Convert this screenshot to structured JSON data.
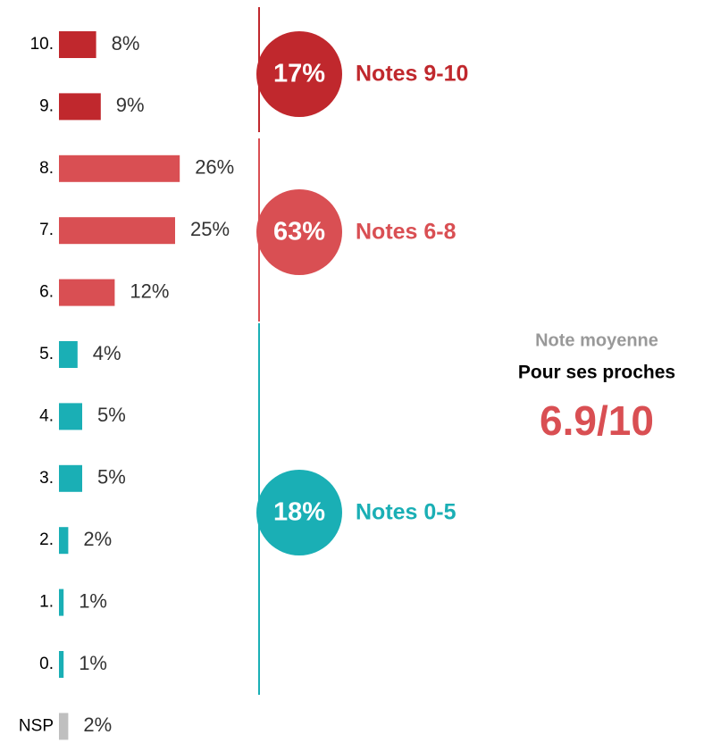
{
  "chart_data": {
    "type": "bar",
    "orientation": "horizontal",
    "categories": [
      "10.",
      "9.",
      "8.",
      "7.",
      "6.",
      "5.",
      "4.",
      "3.",
      "2.",
      "1.",
      "0.",
      "NSP"
    ],
    "values": [
      8,
      9,
      26,
      25,
      12,
      4,
      5,
      5,
      2,
      1,
      1,
      2
    ],
    "value_labels": [
      "8%",
      "9%",
      "26%",
      "25%",
      "12%",
      "4%",
      "5%",
      "5%",
      "2%",
      "1%",
      "1%",
      "2%"
    ],
    "colors": [
      "#c0282d",
      "#c0282d",
      "#d94f53",
      "#d94f53",
      "#d94f53",
      "#1aafb5",
      "#1aafb5",
      "#1aafb5",
      "#1aafb5",
      "#1aafb5",
      "#1aafb5",
      "#bfbfbf"
    ],
    "groups": {
      "names": [
        "Notes 9-10",
        "Notes 6-8",
        "Notes 0-5"
      ],
      "values": [
        17,
        63,
        18
      ],
      "value_labels": [
        "17%",
        "63%",
        "18%"
      ],
      "colors": [
        "#c0282d",
        "#d94f53",
        "#1aafb5"
      ]
    },
    "mean": {
      "title": "Note moyenne",
      "subtitle": "Pour ses proches",
      "value_label": "6.9/10"
    }
  }
}
